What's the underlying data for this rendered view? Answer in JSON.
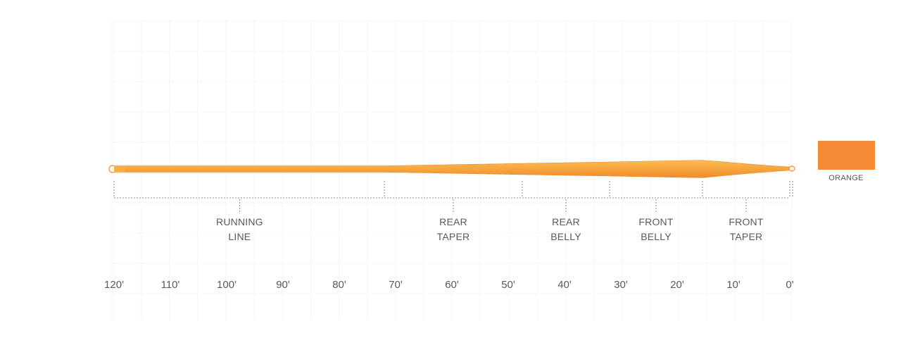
{
  "line_color": {
    "name": "ORANGE",
    "hex": "#F58A34"
  },
  "segments": [
    {
      "lines": [
        "RUNNING",
        "LINE"
      ],
      "start_ft": 120,
      "end_ft": 72
    },
    {
      "lines": [
        "REAR",
        "TAPER"
      ],
      "start_ft": 72,
      "end_ft": 47.5
    },
    {
      "lines": [
        "REAR",
        "BELLY"
      ],
      "start_ft": 47.5,
      "end_ft": 32
    },
    {
      "lines": [
        "FRONT",
        "BELLY"
      ],
      "start_ft": 32,
      "end_ft": 15.5
    },
    {
      "lines": [
        "FRONT",
        "TAPER"
      ],
      "start_ft": 15.5,
      "end_ft": 0
    }
  ],
  "axis": {
    "min_ft": 0,
    "max_ft": 120,
    "ticks": [
      "120'",
      "110'",
      "100'",
      "90'",
      "80'",
      "70'",
      "60'",
      "50'",
      "40'",
      "30'",
      "20'",
      "10'",
      "0'"
    ]
  }
}
